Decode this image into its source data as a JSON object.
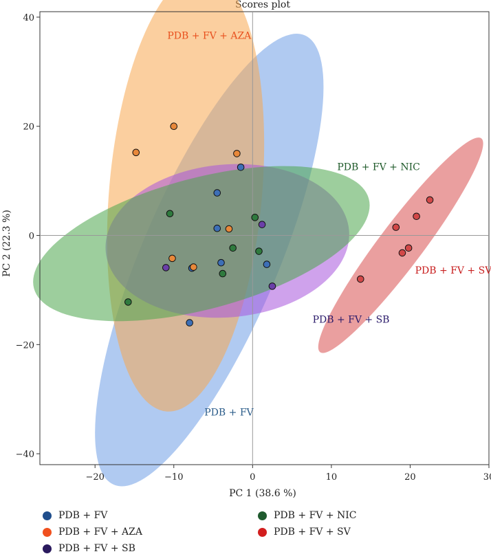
{
  "chart_data": {
    "type": "scatter",
    "title": "Scores plot",
    "xlabel": "PC 1 (38.6 %)",
    "ylabel": "PC 2 (22.3 %)",
    "xlim": [
      -27,
      30
    ],
    "ylim": [
      -42,
      41
    ],
    "x_ticks": [
      -20,
      -10,
      0,
      10,
      20,
      30
    ],
    "y_ticks": [
      -40,
      -20,
      0,
      20,
      40
    ],
    "x_tick_labels": [
      "−20",
      "−10",
      "0",
      "10",
      "20",
      "30"
    ],
    "y_tick_labels": [
      "−40",
      "−20",
      "0",
      "20",
      "40"
    ],
    "zero_lines": true,
    "series": [
      {
        "name": "PDB + FV",
        "label": "PDB + FV",
        "legend_color": "#1f4e8c",
        "point_color": "#3d6fb6",
        "label_color": "#2b5c8a",
        "ellipse_color": "#6f9ee6",
        "ellipse": {
          "cx": -5.5,
          "cy": -4.5,
          "rx": 31,
          "ry": 12.5,
          "angle": 67
        },
        "label_pos": [
          -3,
          -33
        ],
        "points": [
          [
            -1.5,
            12.5
          ],
          [
            -4.5,
            7.8
          ],
          [
            -4.5,
            1.3
          ],
          [
            -4,
            -5
          ],
          [
            -7.7,
            -6
          ],
          [
            1.8,
            -5.3
          ],
          [
            -8,
            -16
          ]
        ]
      },
      {
        "name": "PDB + FV + AZA",
        "label": "PDB + FV + AZA",
        "legend_color": "#f0501e",
        "point_color": "#e8883a",
        "label_color": "#e8501e",
        "ellipse_color": "#f7a850",
        "ellipse": {
          "cx": -8.5,
          "cy": 8,
          "rx": 28,
          "ry": 14,
          "angle": 85
        },
        "label_pos": [
          -5.5,
          36
        ],
        "points": [
          [
            -10,
            20
          ],
          [
            -14.8,
            15.2
          ],
          [
            -2,
            15
          ],
          [
            -3,
            1.2
          ],
          [
            -10.2,
            -4.2
          ],
          [
            -7.5,
            -5.8
          ]
        ]
      },
      {
        "name": "PDB + FV + SB",
        "label": "PDB + FV + SB",
        "legend_color": "#2a1a5e",
        "point_color": "#6a3fa8",
        "label_color": "#2a1a6a",
        "ellipse_color": "#a855dc",
        "ellipse": {
          "cx": -3.2,
          "cy": -1,
          "rx": 15.5,
          "ry": 14,
          "angle": 5
        },
        "label_pos": [
          12.5,
          -16
        ],
        "points": [
          [
            1.2,
            2
          ],
          [
            -11,
            -5.9
          ],
          [
            2.5,
            -9.3
          ]
        ]
      },
      {
        "name": "PDB + FV + NIC",
        "label": "PDB + FV + NIC",
        "legend_color": "#1f5a2e",
        "point_color": "#2f7a3e",
        "label_color": "#1f5a2a",
        "ellipse_color": "#4ca64c",
        "ellipse": {
          "cx": -6.5,
          "cy": -1.5,
          "rx": 22,
          "ry": 12,
          "angle": 15
        },
        "label_pos": [
          16,
          12
        ],
        "points": [
          [
            -10.5,
            4
          ],
          [
            0.3,
            3.3
          ],
          [
            -2.5,
            -2.3
          ],
          [
            0.8,
            -2.9
          ],
          [
            -3.8,
            -7
          ],
          [
            -15.8,
            -12.2
          ]
        ]
      },
      {
        "name": "PDB + FV + SV",
        "label": "PDB + FV + SV",
        "legend_color": "#d21e1e",
        "point_color": "#d24848",
        "label_color": "#c81e1e",
        "ellipse_color": "#d95050",
        "ellipse": {
          "cx": 18.8,
          "cy": -1.8,
          "rx": 17,
          "ry": 4,
          "angle": 53
        },
        "label_pos": [
          25.5,
          -7
        ],
        "points": [
          [
            22.5,
            6.5
          ],
          [
            20.8,
            3.5
          ],
          [
            18.2,
            1.5
          ],
          [
            19.8,
            -2.3
          ],
          [
            19,
            -3.2
          ],
          [
            13.7,
            -8
          ]
        ]
      }
    ],
    "legend_position": "bottom"
  }
}
